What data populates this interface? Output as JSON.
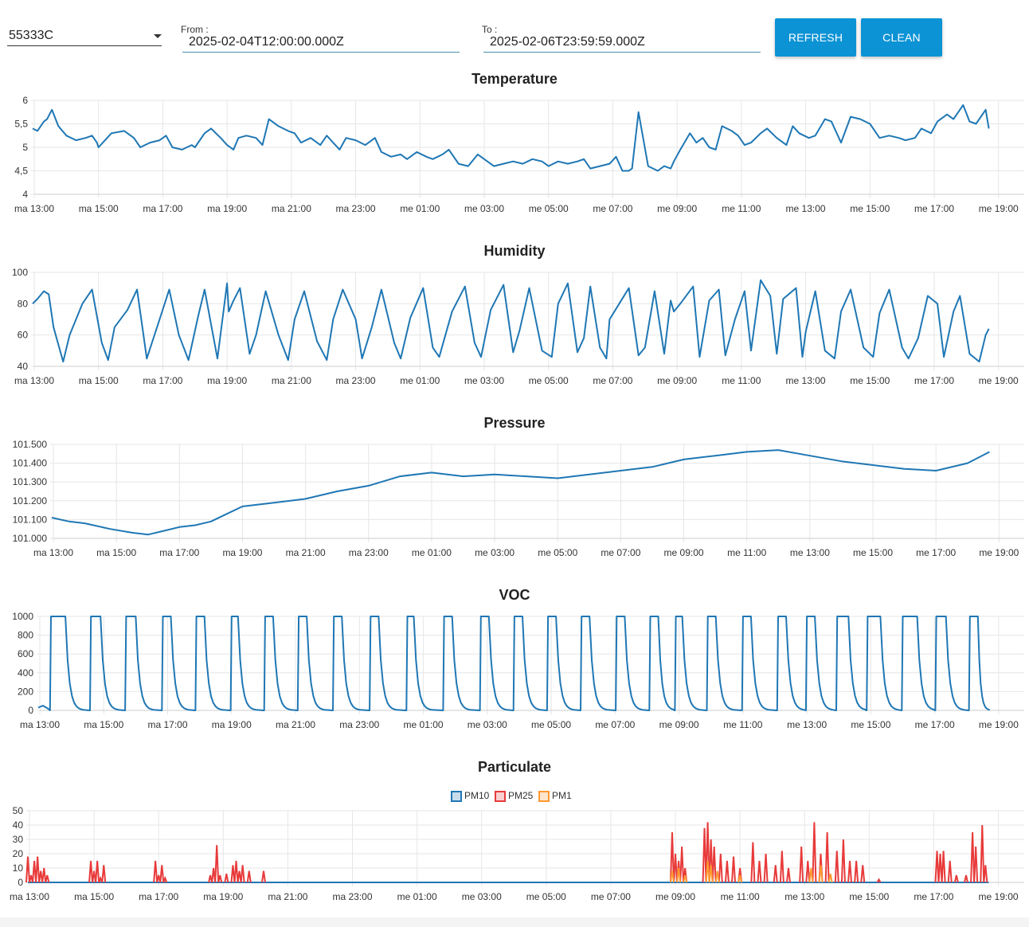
{
  "controls": {
    "device_id": "55333C",
    "from_label": "From :",
    "from_value": "2025-02-04T12:00:00.000Z",
    "to_label": "To :",
    "to_value": "2025-02-06T23:59:59.000Z",
    "refresh_label": "REFRESH",
    "clean_label": "CLEAN"
  },
  "colors": {
    "line": "#1f77b4",
    "pm10": "#1f77b4",
    "pm25": "#e83a3a",
    "pm1": "#ff9933",
    "grid": "#e6e6e6",
    "button": "#0c93d5"
  },
  "chart_data": [
    {
      "id": "temperature",
      "type": "line",
      "title": "Temperature",
      "x_tick_labels": [
        "ma 13:00",
        "ma 15:00",
        "ma 17:00",
        "ma 19:00",
        "ma 21:00",
        "ma 23:00",
        "me 01:00",
        "me 03:00",
        "me 05:00",
        "me 07:00",
        "me 09:00",
        "me 11:00",
        "me 13:00",
        "me 15:00",
        "me 17:00",
        "me 19:00"
      ],
      "x_range_hours": [
        13,
        43
      ],
      "y_tick_labels": [
        "4",
        "4,5",
        "5",
        "5,5",
        "6"
      ],
      "ylim": [
        4,
        6
      ],
      "y_ticks": [
        4,
        4.5,
        5,
        5.5,
        6
      ],
      "grid": true,
      "series": [
        {
          "x": [
            12.95,
            13.1,
            13.3,
            13.4,
            13.55,
            13.75,
            14.0,
            14.3,
            14.6,
            14.8,
            14.95,
            15.0,
            15.4,
            15.8,
            16.1,
            16.3,
            16.6,
            16.9,
            17.1,
            17.3,
            17.6,
            17.9,
            18.0,
            18.3,
            18.5,
            18.8,
            19.0,
            19.2,
            19.35,
            19.6,
            19.9,
            20.1,
            20.3,
            20.6,
            20.9,
            21.1,
            21.3,
            21.6,
            21.9,
            22.1,
            22.3,
            22.5,
            22.7,
            23.0,
            23.3,
            23.6,
            23.8,
            24.1,
            24.4,
            24.6,
            24.9,
            25.2,
            25.4,
            25.7,
            25.9,
            26.2,
            26.5,
            26.8,
            27.0,
            27.3,
            27.6,
            27.9,
            28.2,
            28.5,
            28.8,
            29.0,
            29.3,
            29.6,
            29.9,
            30.1,
            30.3,
            30.6,
            30.9,
            31.1,
            31.3,
            31.5,
            31.6,
            31.8,
            32.1,
            32.4,
            32.6,
            32.8,
            32.9,
            33.1,
            33.4,
            33.6,
            33.8,
            34.0,
            34.2,
            34.4,
            34.7,
            34.9,
            35.1,
            35.3,
            35.6,
            35.8,
            36.1,
            36.4,
            36.6,
            36.8,
            37.1,
            37.3,
            37.6,
            37.8,
            38.1,
            38.4,
            38.7,
            39.0,
            39.3,
            39.6,
            39.9,
            40.1,
            40.4,
            40.6,
            40.9,
            41.1,
            41.4,
            41.6,
            41.9,
            42.1,
            42.3,
            42.6,
            42.7
          ],
          "y": [
            5.4,
            5.35,
            5.55,
            5.6,
            5.8,
            5.45,
            5.25,
            5.15,
            5.2,
            5.25,
            5.1,
            5.0,
            5.3,
            5.35,
            5.2,
            5.0,
            5.1,
            5.15,
            5.25,
            5.0,
            4.95,
            5.05,
            5.0,
            5.3,
            5.4,
            5.2,
            5.05,
            4.95,
            5.2,
            5.25,
            5.2,
            5.05,
            5.6,
            5.45,
            5.35,
            5.3,
            5.1,
            5.2,
            5.05,
            5.25,
            5.1,
            4.95,
            5.2,
            5.15,
            5.05,
            5.2,
            4.9,
            4.8,
            4.85,
            4.75,
            4.9,
            4.8,
            4.75,
            4.85,
            4.95,
            4.65,
            4.6,
            4.85,
            4.75,
            4.6,
            4.65,
            4.7,
            4.65,
            4.75,
            4.7,
            4.6,
            4.7,
            4.65,
            4.7,
            4.75,
            4.55,
            4.6,
            4.65,
            4.8,
            4.5,
            4.5,
            4.55,
            5.75,
            4.6,
            4.5,
            4.6,
            4.55,
            4.7,
            4.95,
            5.3,
            5.1,
            5.2,
            5.0,
            4.95,
            5.45,
            5.35,
            5.25,
            5.05,
            5.1,
            5.3,
            5.4,
            5.2,
            5.05,
            5.45,
            5.3,
            5.2,
            5.25,
            5.6,
            5.55,
            5.1,
            5.65,
            5.6,
            5.5,
            5.2,
            5.25,
            5.2,
            5.15,
            5.2,
            5.4,
            5.3,
            5.55,
            5.7,
            5.6,
            5.9,
            5.55,
            5.5,
            5.8,
            5.4
          ],
          "color": "#1f77b4"
        }
      ]
    },
    {
      "id": "humidity",
      "type": "line",
      "title": "Humidity",
      "x_tick_labels": [
        "ma 13:00",
        "ma 15:00",
        "ma 17:00",
        "ma 19:00",
        "ma 21:00",
        "ma 23:00",
        "me 01:00",
        "me 03:00",
        "me 05:00",
        "me 07:00",
        "me 09:00",
        "me 11:00",
        "me 13:00",
        "me 15:00",
        "me 17:00",
        "me 19:00"
      ],
      "x_range_hours": [
        13,
        43
      ],
      "y_tick_labels": [
        "40",
        "60",
        "80",
        "100"
      ],
      "ylim": [
        40,
        100
      ],
      "y_ticks": [
        40,
        60,
        80,
        100
      ],
      "grid": true,
      "series": [
        {
          "x": [
            12.95,
            13.1,
            13.3,
            13.45,
            13.6,
            13.9,
            14.1,
            14.5,
            14.8,
            15.1,
            15.3,
            15.5,
            15.9,
            16.2,
            16.5,
            16.9,
            17.2,
            17.5,
            17.8,
            18.1,
            18.3,
            18.7,
            19.0,
            19.05,
            19.2,
            19.4,
            19.7,
            19.9,
            20.2,
            20.6,
            20.9,
            21.1,
            21.4,
            21.8,
            22.1,
            22.3,
            22.6,
            23.0,
            23.2,
            23.5,
            23.8,
            24.2,
            24.4,
            24.7,
            25.1,
            25.4,
            25.6,
            26.0,
            26.4,
            26.7,
            26.9,
            27.2,
            27.6,
            27.9,
            28.1,
            28.4,
            28.8,
            29.1,
            29.3,
            29.6,
            29.9,
            30.1,
            30.3,
            30.6,
            30.8,
            30.9,
            31.2,
            31.5,
            31.8,
            32.0,
            32.3,
            32.6,
            32.8,
            32.9,
            33.1,
            33.5,
            33.7,
            34.0,
            34.3,
            34.5,
            34.8,
            35.1,
            35.3,
            35.6,
            35.9,
            36.1,
            36.3,
            36.7,
            36.9,
            37.0,
            37.3,
            37.6,
            37.9,
            38.1,
            38.4,
            38.8,
            39.1,
            39.3,
            39.6,
            40.0,
            40.2,
            40.5,
            40.8,
            41.1,
            41.3,
            41.6,
            41.8,
            42.1,
            42.4,
            42.6,
            42.7
          ],
          "y": [
            80,
            83,
            88,
            86,
            65,
            43,
            60,
            80,
            89,
            55,
            44,
            65,
            76,
            89,
            45,
            70,
            89,
            60,
            44,
            72,
            89,
            45,
            93,
            75,
            82,
            90,
            48,
            60,
            88,
            60,
            44,
            70,
            88,
            56,
            44,
            70,
            89,
            70,
            45,
            65,
            89,
            55,
            45,
            71,
            90,
            52,
            46,
            75,
            91,
            55,
            46,
            76,
            92,
            49,
            63,
            90,
            50,
            46,
            80,
            93,
            49,
            58,
            91,
            52,
            45,
            70,
            80,
            90,
            47,
            52,
            88,
            48,
            82,
            75,
            80,
            91,
            46,
            82,
            89,
            47,
            70,
            88,
            50,
            95,
            85,
            48,
            83,
            90,
            46,
            62,
            88,
            50,
            45,
            75,
            89,
            52,
            46,
            74,
            89,
            52,
            45,
            58,
            85,
            80,
            46,
            75,
            85,
            48,
            43,
            60,
            64
          ],
          "color": "#1f77b4"
        }
      ]
    },
    {
      "id": "pressure",
      "type": "line",
      "title": "Pressure",
      "x_tick_labels": [
        "ma 13:00",
        "ma 15:00",
        "ma 17:00",
        "ma 19:00",
        "ma 21:00",
        "ma 23:00",
        "me 01:00",
        "me 03:00",
        "me 05:00",
        "me 07:00",
        "me 09:00",
        "me 11:00",
        "me 13:00",
        "me 15:00",
        "me 17:00",
        "me 19:00"
      ],
      "x_range_hours": [
        13,
        43
      ],
      "y_tick_labels": [
        "101.000",
        "101.100",
        "101.200",
        "101.300",
        "101.400",
        "101.500"
      ],
      "ylim": [
        101.0,
        101.5
      ],
      "y_ticks": [
        101.0,
        101.1,
        101.2,
        101.3,
        101.4,
        101.5
      ],
      "grid": true,
      "series": [
        {
          "x": [
            12.95,
            13.5,
            14.0,
            14.8,
            15.5,
            16.0,
            16.5,
            17.0,
            17.5,
            18.0,
            18.5,
            19.0,
            20.0,
            21.0,
            22.0,
            23.0,
            24.0,
            25.0,
            25.5,
            26.0,
            27.0,
            28.0,
            29.0,
            30.0,
            31.0,
            32.0,
            32.5,
            33.0,
            34.0,
            35.0,
            36.0,
            37.0,
            38.0,
            39.0,
            40.0,
            41.0,
            42.0,
            42.7
          ],
          "y": [
            101.11,
            101.09,
            101.08,
            101.05,
            101.03,
            101.02,
            101.04,
            101.06,
            101.07,
            101.09,
            101.13,
            101.17,
            101.19,
            101.21,
            101.25,
            101.28,
            101.33,
            101.35,
            101.34,
            101.33,
            101.34,
            101.33,
            101.32,
            101.34,
            101.36,
            101.38,
            101.4,
            101.42,
            101.44,
            101.46,
            101.47,
            101.44,
            101.41,
            101.39,
            101.37,
            101.36,
            101.4,
            101.46
          ],
          "color": "#1f77b4"
        }
      ]
    },
    {
      "id": "voc",
      "type": "line",
      "title": "VOC",
      "x_tick_labels": [
        "ma 13:00",
        "ma 15:00",
        "ma 17:00",
        "ma 19:00",
        "ma 21:00",
        "ma 23:00",
        "me 01:00",
        "me 03:00",
        "me 05:00",
        "me 07:00",
        "me 09:00",
        "me 11:00",
        "me 13:00",
        "me 15:00",
        "me 17:00",
        "me 19:00"
      ],
      "x_range_hours": [
        13,
        43
      ],
      "y_tick_labels": [
        "0",
        "200",
        "400",
        "600",
        "800",
        "1000"
      ],
      "ylim": [
        0,
        1000
      ],
      "y_ticks": [
        0,
        200,
        400,
        600,
        800,
        1000
      ],
      "grid": true,
      "pulse_windows_hours": [
        [
          13.35,
          13.8
        ],
        [
          14.6,
          14.9
        ],
        [
          15.7,
          16.0
        ],
        [
          16.85,
          17.1
        ],
        [
          17.9,
          18.15
        ],
        [
          19.0,
          19.2
        ],
        [
          20.05,
          20.3
        ],
        [
          21.1,
          21.35
        ],
        [
          22.2,
          22.45
        ],
        [
          23.35,
          23.6
        ],
        [
          24.5,
          24.7
        ],
        [
          25.65,
          25.9
        ],
        [
          26.8,
          27.05
        ],
        [
          27.85,
          28.1
        ],
        [
          28.9,
          29.15
        ],
        [
          29.95,
          30.2
        ],
        [
          31.05,
          31.3
        ],
        [
          32.1,
          32.35
        ],
        [
          32.9,
          33.1
        ],
        [
          33.9,
          34.15
        ],
        [
          35.0,
          35.25
        ],
        [
          36.1,
          36.35
        ],
        [
          37.0,
          37.25
        ],
        [
          37.95,
          38.3
        ],
        [
          38.9,
          39.3
        ],
        [
          40.0,
          40.45
        ],
        [
          41.05,
          41.35
        ],
        [
          42.1,
          42.35
        ]
      ],
      "series": [
        {
          "baseline": 0,
          "plateau": 1000,
          "color": "#1f77b4"
        }
      ]
    },
    {
      "id": "particulate",
      "type": "line",
      "title": "Particulate",
      "x_tick_labels": [
        "ma 13:00",
        "ma 15:00",
        "ma 17:00",
        "ma 19:00",
        "ma 21:00",
        "ma 23:00",
        "me 01:00",
        "me 03:00",
        "me 05:00",
        "me 07:00",
        "me 09:00",
        "me 11:00",
        "me 13:00",
        "me 15:00",
        "me 17:00",
        "me 19:00"
      ],
      "x_range_hours": [
        13,
        43
      ],
      "y_tick_labels": [
        "0",
        "10",
        "20",
        "30",
        "40",
        "50"
      ],
      "ylim": [
        0,
        50
      ],
      "y_ticks": [
        0,
        10,
        20,
        30,
        40,
        50
      ],
      "grid": true,
      "legend": {
        "position": "top-center",
        "entries": [
          "PM10",
          "PM25",
          "PM1"
        ]
      },
      "series": [
        {
          "name": "PM10",
          "color": "#1f77b4",
          "x": [
            12.95,
            42.7
          ],
          "y": [
            0,
            0
          ]
        },
        {
          "name": "PM25",
          "color": "#e83a3a",
          "x": [
            12.95,
            13.05,
            13.15,
            13.25,
            13.35,
            13.45,
            13.55,
            14.9,
            15.0,
            15.1,
            15.2,
            15.3,
            16.9,
            17.0,
            17.1,
            17.2,
            18.6,
            18.7,
            18.8,
            18.9,
            19.1,
            19.3,
            19.4,
            19.5,
            19.6,
            19.8,
            20.25,
            32.9,
            33.0,
            33.1,
            33.2,
            33.3,
            33.9,
            34.0,
            34.1,
            34.2,
            34.4,
            34.6,
            34.8,
            35.0,
            35.4,
            35.6,
            35.8,
            36.1,
            36.3,
            36.5,
            36.9,
            37.1,
            37.3,
            37.5,
            37.7,
            38.0,
            38.2,
            38.4,
            38.6,
            38.8,
            39.3,
            41.1,
            41.2,
            41.3,
            41.5,
            41.7,
            42.0,
            42.2,
            42.3,
            42.5,
            42.6
          ],
          "y": [
            18,
            5,
            15,
            18,
            8,
            10,
            5,
            15,
            8,
            15,
            3,
            12,
            15,
            5,
            12,
            3,
            5,
            10,
            26,
            5,
            6,
            12,
            15,
            8,
            12,
            8,
            8,
            35,
            20,
            15,
            25,
            10,
            38,
            42,
            30,
            25,
            20,
            15,
            18,
            10,
            28,
            15,
            20,
            12,
            22,
            10,
            25,
            15,
            42,
            20,
            35,
            22,
            30,
            15,
            15,
            12,
            2,
            22,
            20,
            22,
            15,
            5,
            5,
            35,
            25,
            40,
            12
          ],
          "render": "spikes"
        },
        {
          "name": "PM1",
          "color": "#ff9933",
          "x": [
            32.9,
            33.1,
            33.3,
            34.0,
            34.1,
            34.3,
            35.0,
            37.2,
            37.5,
            37.8
          ],
          "y": [
            8,
            10,
            5,
            15,
            12,
            8,
            5,
            10,
            12,
            6
          ],
          "render": "spikes"
        }
      ]
    }
  ]
}
